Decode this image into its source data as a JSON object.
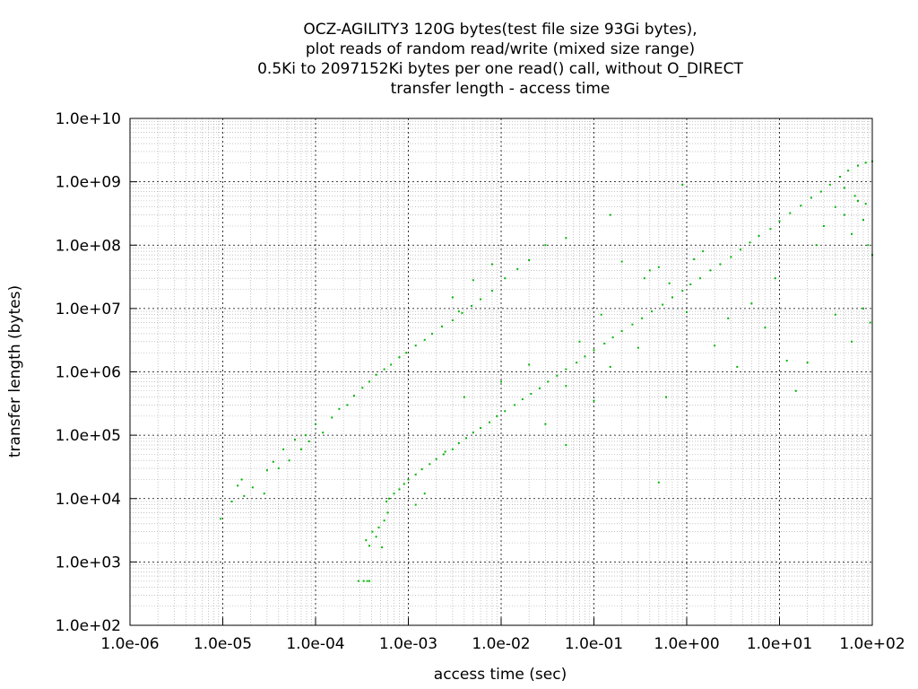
{
  "chart_data": {
    "type": "scatter",
    "title_lines": [
      "OCZ-AGILITY3 120G bytes(test file size 93Gi bytes),",
      "plot reads of random read/write (mixed size range)",
      "0.5Ki to 2097152Ki bytes per one read() call, without O_DIRECT",
      "transfer length - access time"
    ],
    "xlabel": "access time (sec)",
    "ylabel": "transfer length (bytes)",
    "x_scale": "log",
    "y_scale": "log",
    "xlim": [
      1e-06,
      100
    ],
    "ylim": [
      100,
      10000000000
    ],
    "x_ticks": [
      {
        "value": 1e-06,
        "label": "1.0e-06"
      },
      {
        "value": 1e-05,
        "label": "1.0e-05"
      },
      {
        "value": 0.0001,
        "label": "1.0e-04"
      },
      {
        "value": 0.001,
        "label": "1.0e-03"
      },
      {
        "value": 0.01,
        "label": "1.0e-02"
      },
      {
        "value": 0.1,
        "label": "1.0e-01"
      },
      {
        "value": 1,
        "label": "1.0e+00"
      },
      {
        "value": 10,
        "label": "1.0e+01"
      },
      {
        "value": 100,
        "label": "1.0e+02"
      }
    ],
    "y_ticks": [
      {
        "value": 100,
        "label": "1.0e+02"
      },
      {
        "value": 1000,
        "label": "1.0e+03"
      },
      {
        "value": 10000,
        "label": "1.0e+04"
      },
      {
        "value": 100000,
        "label": "1.0e+05"
      },
      {
        "value": 1000000,
        "label": "1.0e+06"
      },
      {
        "value": 10000000,
        "label": "1.0e+07"
      },
      {
        "value": 100000000,
        "label": "1.0e+08"
      },
      {
        "value": 1000000000,
        "label": "1.0e+09"
      },
      {
        "value": 10000000000,
        "label": "1.0e+10"
      }
    ],
    "grid": "major and minor (log) gridlines",
    "point_color": "#00b400",
    "series": [
      {
        "points": [
          [
            9.5e-06,
            4800
          ],
          [
            1.25e-05,
            9000
          ],
          [
            1.45e-05,
            16000
          ],
          [
            1.6e-05,
            20000
          ],
          [
            1.7e-05,
            11000
          ],
          [
            2.1e-05,
            15000
          ],
          [
            2.8e-05,
            12000
          ],
          [
            3e-05,
            28000
          ],
          [
            3.5e-05,
            38000
          ],
          [
            4e-05,
            30000
          ],
          [
            4.5e-05,
            60000
          ],
          [
            5.2e-05,
            40000
          ],
          [
            6e-05,
            85000
          ],
          [
            7e-05,
            60000
          ],
          [
            7.8e-05,
            100000
          ],
          [
            8.5e-05,
            80000
          ],
          [
            0.0001,
            150000
          ],
          [
            0.00012,
            110000
          ],
          [
            0.00015,
            190000
          ],
          [
            0.00018,
            260000
          ],
          [
            0.00022,
            300000
          ],
          [
            0.00026,
            420000
          ],
          [
            0.00032,
            560000
          ],
          [
            0.00038,
            700000
          ],
          [
            0.00045,
            900000
          ],
          [
            0.00055,
            1100000
          ],
          [
            0.00065,
            1300000
          ],
          [
            0.0008,
            1700000
          ],
          [
            0.00095,
            2000000
          ],
          [
            0.0012,
            2600000
          ],
          [
            0.0015,
            3200000
          ],
          [
            0.0018,
            4000000
          ],
          [
            0.0023,
            5200000
          ],
          [
            0.003,
            6500000
          ],
          [
            0.0038,
            8500000
          ],
          [
            0.0048,
            11000000
          ],
          [
            0.006,
            14000000
          ],
          [
            0.008,
            19000000
          ],
          [
            0.011,
            30000000
          ],
          [
            0.015,
            42000000
          ],
          [
            0.02,
            58000000
          ],
          [
            0.03,
            100000000
          ],
          [
            0.05,
            130000000
          ],
          [
            0.00029,
            500
          ],
          [
            0.00033,
            500
          ],
          [
            0.00036,
            500
          ],
          [
            0.00038,
            500
          ],
          [
            0.00035,
            2200
          ],
          [
            0.00038,
            1800
          ],
          [
            0.00041,
            3000
          ],
          [
            0.00045,
            2500
          ],
          [
            0.00048,
            3500
          ],
          [
            0.00052,
            1700
          ],
          [
            0.00055,
            4500
          ],
          [
            0.0006,
            6000
          ],
          [
            0.00058,
            9000
          ],
          [
            0.00062,
            10000
          ],
          [
            0.0007,
            12000
          ],
          [
            0.0008,
            14000
          ],
          [
            0.0009,
            17000
          ],
          [
            0.001,
            20000
          ],
          [
            0.0012,
            24000
          ],
          [
            0.0014,
            29000
          ],
          [
            0.0017,
            35000
          ],
          [
            0.002,
            42000
          ],
          [
            0.0024,
            50000
          ],
          [
            0.003,
            60000
          ],
          [
            0.0035,
            75000
          ],
          [
            0.0042,
            90000
          ],
          [
            0.005,
            110000
          ],
          [
            0.006,
            130000
          ],
          [
            0.0075,
            160000
          ],
          [
            0.009,
            200000
          ],
          [
            0.011,
            240000
          ],
          [
            0.014,
            300000
          ],
          [
            0.017,
            370000
          ],
          [
            0.021,
            450000
          ],
          [
            0.026,
            550000
          ],
          [
            0.032,
            700000
          ],
          [
            0.04,
            870000
          ],
          [
            0.05,
            1100000
          ],
          [
            0.065,
            1400000
          ],
          [
            0.08,
            1750000
          ],
          [
            0.1,
            2200000
          ],
          [
            0.13,
            2800000
          ],
          [
            0.16,
            3500000
          ],
          [
            0.2,
            4400000
          ],
          [
            0.26,
            5600000
          ],
          [
            0.33,
            7000000
          ],
          [
            0.42,
            9000000
          ],
          [
            0.55,
            11500000
          ],
          [
            0.7,
            15000000
          ],
          [
            0.9,
            19000000
          ],
          [
            1.1,
            24000000
          ],
          [
            1.4,
            30000000
          ],
          [
            1.8,
            40000000
          ],
          [
            2.3,
            50000000
          ],
          [
            3,
            65000000
          ],
          [
            3.8,
            85000000
          ],
          [
            4.8,
            110000000
          ],
          [
            6,
            140000000
          ],
          [
            8,
            180000000
          ],
          [
            10,
            240000000
          ],
          [
            13,
            320000000
          ],
          [
            17,
            420000000
          ],
          [
            22,
            560000000
          ],
          [
            28,
            700000000
          ],
          [
            35,
            900000000
          ],
          [
            45,
            1200000000
          ],
          [
            55,
            1500000000
          ],
          [
            70,
            1800000000
          ],
          [
            85,
            2000000000
          ],
          [
            100,
            2100000000
          ],
          [
            1,
            8800000
          ],
          [
            2,
            2600000
          ],
          [
            3.5,
            1200000
          ],
          [
            2.8,
            7000000
          ],
          [
            5,
            12000000
          ],
          [
            7,
            5000000
          ],
          [
            9,
            30000000
          ],
          [
            12,
            1500000
          ],
          [
            15,
            500000
          ],
          [
            20,
            1400000
          ],
          [
            40,
            8000000
          ],
          [
            60,
            3000000
          ],
          [
            80,
            10000000
          ],
          [
            95,
            6000000
          ],
          [
            30,
            200000000
          ],
          [
            40,
            400000000
          ],
          [
            50,
            300000000
          ],
          [
            60,
            150000000
          ],
          [
            70,
            500000000
          ],
          [
            80,
            250000000
          ],
          [
            90,
            100000000
          ],
          [
            100,
            70000000
          ],
          [
            50,
            800000000
          ],
          [
            65,
            600000000
          ],
          [
            85,
            450000000
          ],
          [
            25,
            100000000
          ],
          [
            0.2,
            55000000
          ],
          [
            0.35,
            30000000
          ],
          [
            0.5,
            45000000
          ],
          [
            0.65,
            25000000
          ],
          [
            1.2,
            60000000
          ],
          [
            1.5,
            80000000
          ],
          [
            0.07,
            3000000
          ],
          [
            0.12,
            8000000
          ],
          [
            0.15,
            1200000
          ],
          [
            0.3,
            2400000
          ],
          [
            0.05,
            600000
          ],
          [
            0.6,
            400000
          ],
          [
            0.01,
            700000
          ],
          [
            0.02,
            1300000
          ],
          [
            0.004,
            400000
          ],
          [
            0.0025,
            55000
          ],
          [
            0.0015,
            12000
          ],
          [
            0.0012,
            8000
          ],
          [
            0.05,
            70000
          ],
          [
            0.03,
            150000
          ],
          [
            0.5,
            18000
          ],
          [
            0.1,
            350000
          ],
          [
            0.9,
            900000000
          ],
          [
            0.4,
            40000000
          ],
          [
            0.15,
            300000000
          ],
          [
            0.005,
            28000000
          ],
          [
            0.008,
            50000000
          ],
          [
            0.003,
            15000000
          ],
          [
            0.0035,
            9000000
          ]
        ]
      }
    ]
  }
}
